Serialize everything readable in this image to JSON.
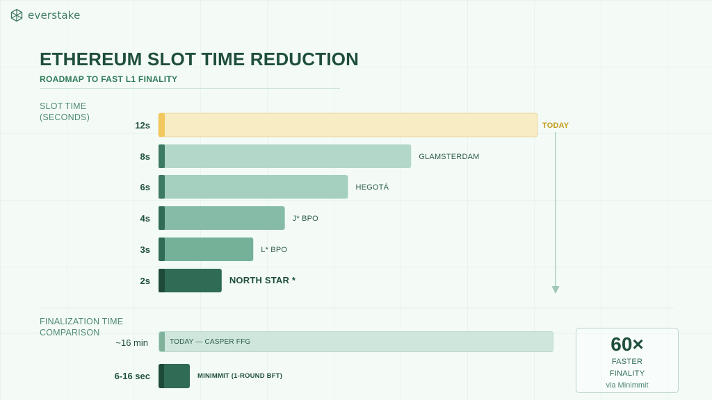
{
  "brand": {
    "name": "everstake",
    "icon": "everstake-hex-logo-icon"
  },
  "header": {
    "title": "ETHEREUM SLOT TIME REDUCTION",
    "subtitle": "ROADMAP TO FAST L1 FINALITY"
  },
  "slot_section": {
    "label_line1": "SLOT TIME",
    "label_line2": "(SECONDS)"
  },
  "finalization_section": {
    "label_line1": "FINALIZATION TIME",
    "label_line2": "COMPARISON"
  },
  "colors": {
    "today_bar": "#f8ecc4",
    "today_cap": "#f2c75e",
    "today_label": "#c29a1a",
    "arrow": "#9fc7b5",
    "bar_dark": "#2f6b55",
    "cap_dark": "#1d4a39"
  },
  "chart_data": [
    {
      "type": "bar",
      "orientation": "horizontal",
      "categories": [
        "12s",
        "8s",
        "6s",
        "4s",
        "3s",
        "2s"
      ],
      "values": [
        12,
        8,
        6,
        4,
        3,
        2
      ],
      "bar_labels": [
        "TODAY",
        "GLAMSTERDAM",
        "HEGOTÁ",
        "J* BPO",
        "L* BPO",
        "NORTH STAR *"
      ],
      "title": "ETHEREUM SLOT TIME REDUCTION",
      "subtitle": "ROADMAP TO FAST L1 FINALITY",
      "ylabel": "SLOT TIME (SECONDS)",
      "xlim": [
        0,
        12
      ],
      "grid": false,
      "legend": "none"
    },
    {
      "type": "bar",
      "orientation": "horizontal",
      "categories": [
        "~16 min",
        "6-16 sec"
      ],
      "values_seconds": [
        960,
        16
      ],
      "bar_labels": [
        "TODAY — CASPER FFG",
        "MINIMMIT (1-ROUND BFT)"
      ],
      "ylabel": "FINALIZATION TIME COMPARISON",
      "grid": false,
      "legend": "none"
    }
  ],
  "callout": {
    "value": "60×",
    "line1": "FASTER",
    "line2": "FINALITY",
    "line3": "via Minimmit"
  }
}
